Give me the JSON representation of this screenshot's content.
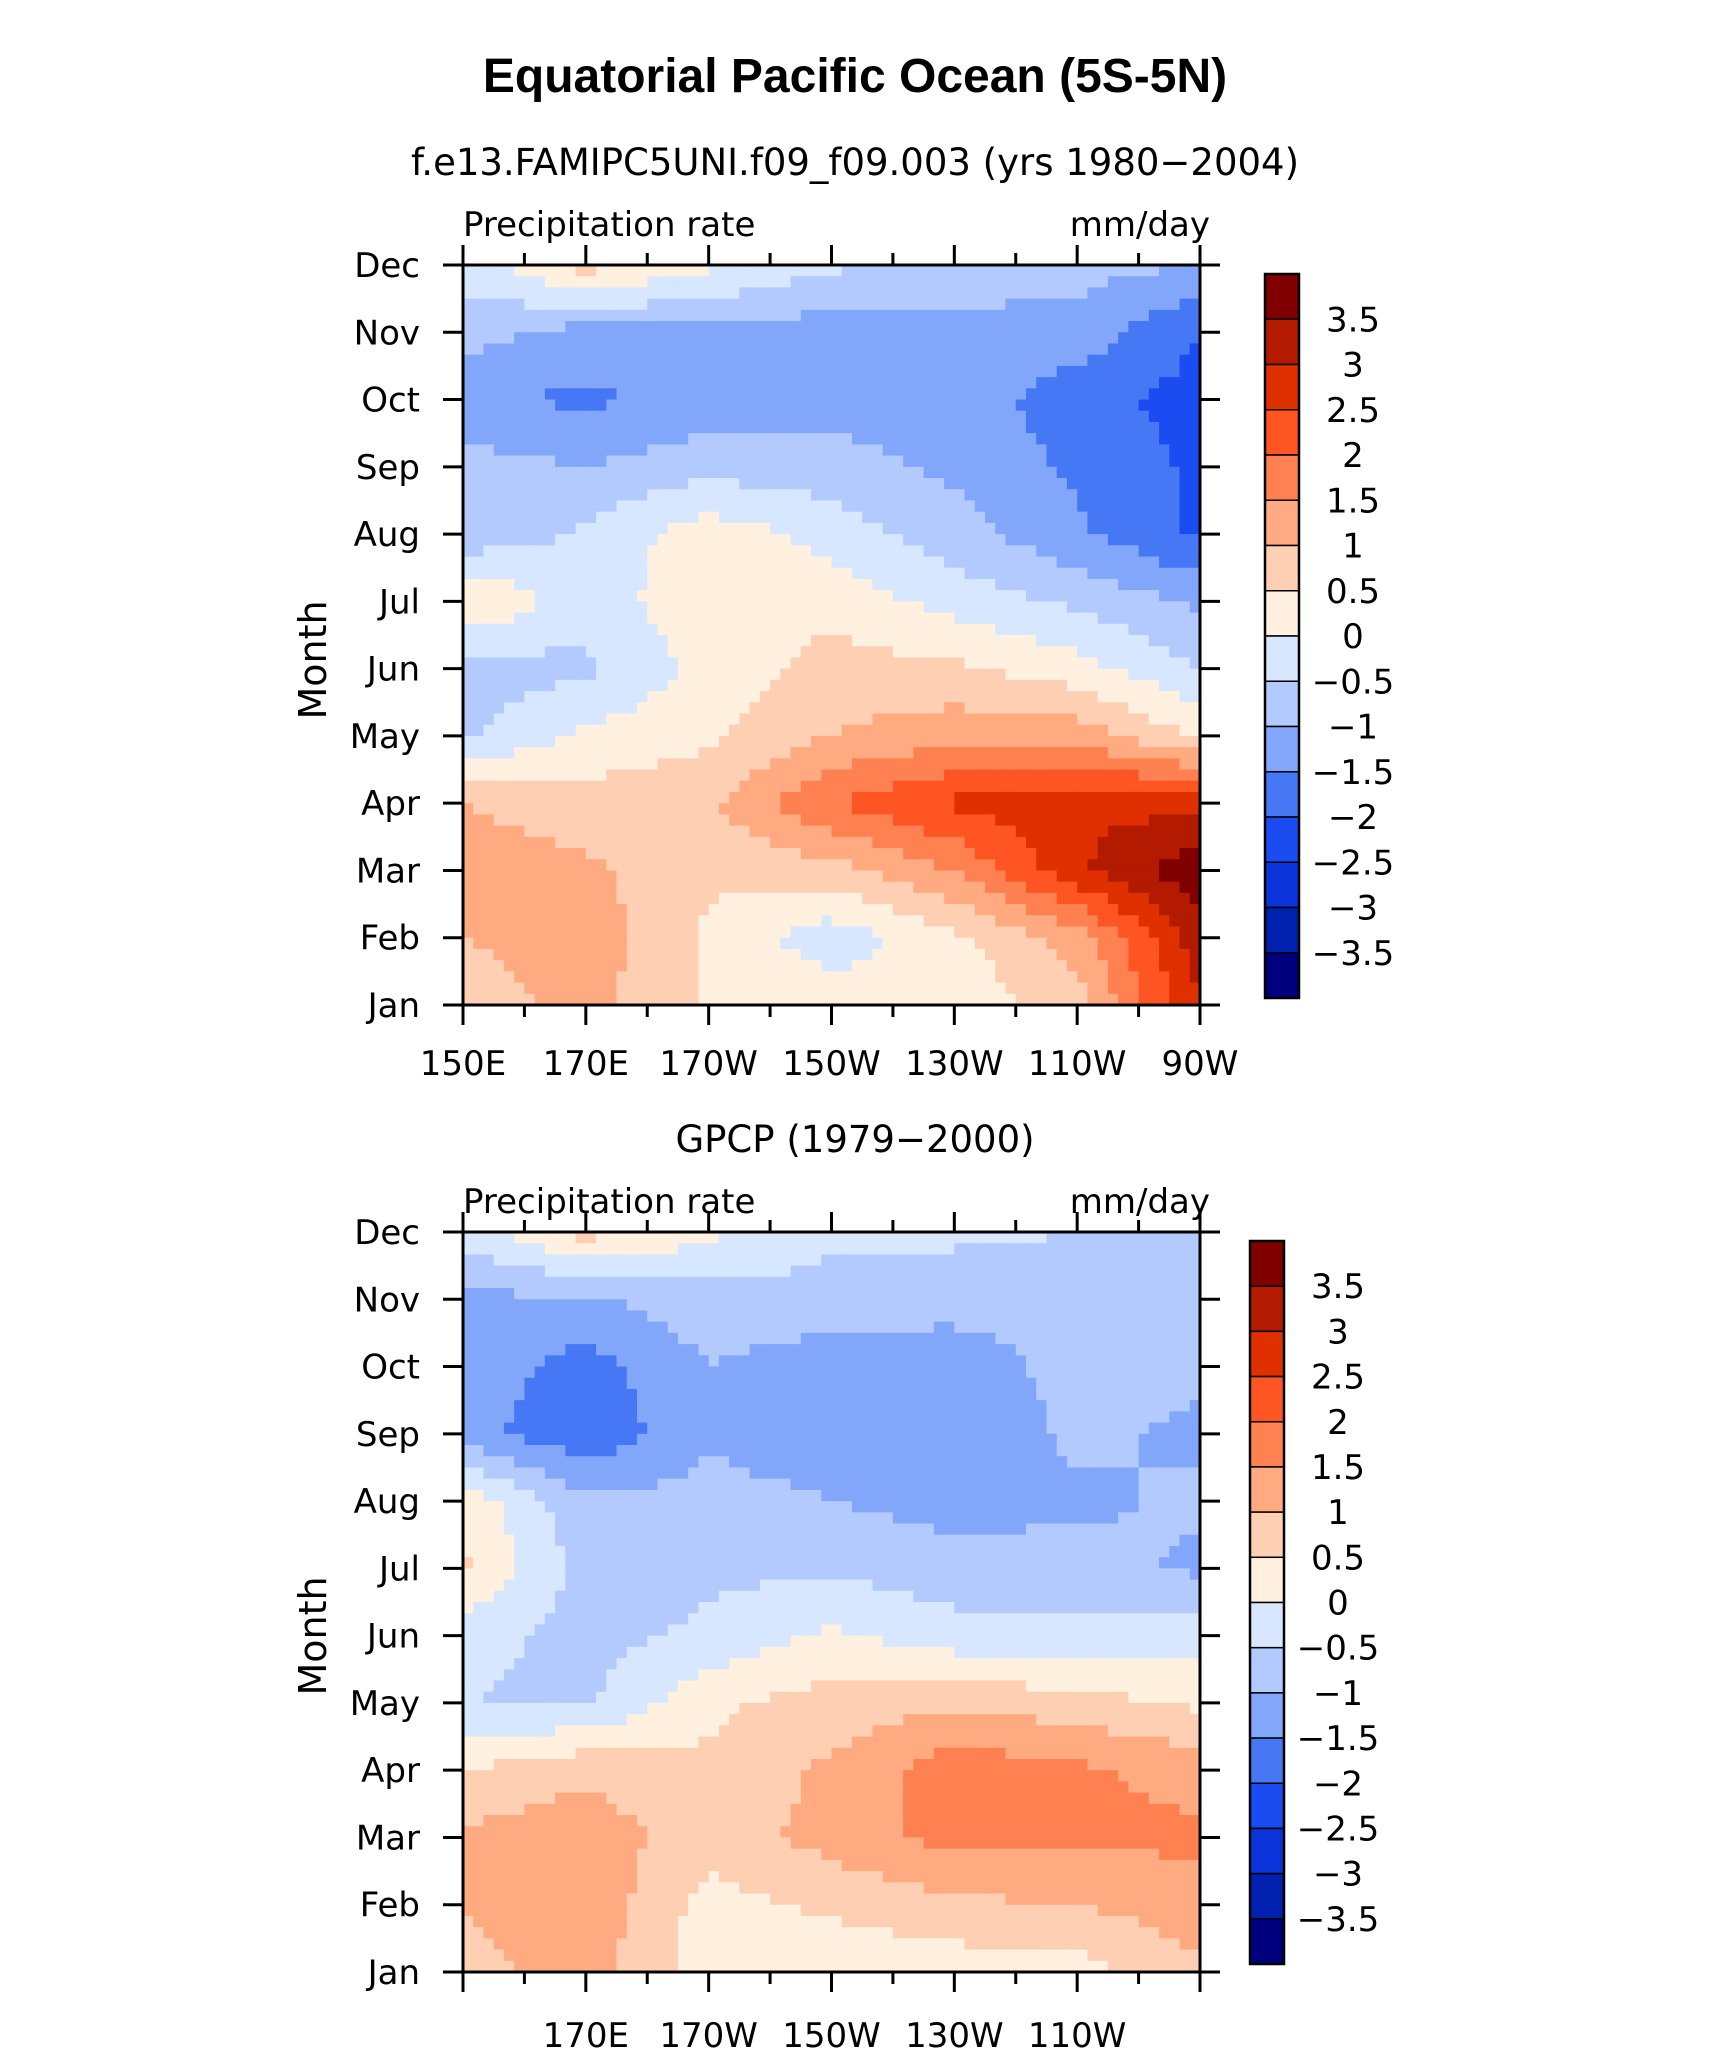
{
  "figure_title": "Equatorial Pacific Ocean (5S-5N)",
  "colors": {
    "levels": [
      "#00007f",
      "#0020b0",
      "#0a33d9",
      "#1a4cf2",
      "#4678f5",
      "#82a6fa",
      "#b3caff",
      "#d7e7ff",
      "#fff0e0",
      "#ffcfb3",
      "#ffaa80",
      "#ff8050",
      "#ff5522",
      "#e03000",
      "#b31a00",
      "#800000"
    ]
  },
  "chart_data": [
    {
      "type": "heatmap",
      "subtitle": "f.e13.FAMIPC5UNI.f09_f09.003 (yrs 1980−2004)",
      "left_label": "Precipitation rate",
      "right_label": "mm/day",
      "ylabel": "Month",
      "y_ticks": [
        "Jan",
        "Feb",
        "Mar",
        "Apr",
        "May",
        "Jun",
        "Jul",
        "Aug",
        "Sep",
        "Oct",
        "Nov",
        "Dec"
      ],
      "x_ticks": [
        "150E",
        "170E",
        "170W",
        "150W",
        "130W",
        "110W",
        "90W"
      ],
      "x_range": [
        150,
        270
      ],
      "colorbar_levels": [
        "3.5",
        "3",
        "2.5",
        "2",
        "1.5",
        "1",
        "0.5",
        "0",
        "−0.5",
        "−1",
        "−1.5",
        "−2",
        "−2.5",
        "−3",
        "−3.5"
      ],
      "grid": {
        "lon": [
          150,
          170,
          190,
          210,
          230,
          250,
          270
        ],
        "months": [
          "Jan",
          "Feb",
          "Mar",
          "Apr",
          "May",
          "Jun",
          "Jul",
          "Aug",
          "Sep",
          "Oct",
          "Nov",
          "Dec"
        ],
        "values": [
          [
            0.7,
            1.2,
            0.4,
            0.3,
            0.1,
            0.8,
            3.0
          ],
          [
            1.0,
            1.3,
            0.4,
            -0.3,
            0.4,
            1.2,
            3.3
          ],
          [
            1.3,
            1.1,
            0.6,
            0.8,
            1.5,
            2.9,
            3.9
          ],
          [
            1.0,
            0.7,
            0.9,
            2.0,
            2.6,
            2.9,
            2.8
          ],
          [
            -0.6,
            0.1,
            0.4,
            1.0,
            1.3,
            1.3,
            0.4
          ],
          [
            -0.8,
            -0.6,
            0.2,
            0.7,
            0.6,
            0.2,
            -0.5
          ],
          [
            0.6,
            -0.3,
            0.4,
            0.3,
            -0.2,
            -0.6,
            -1.1
          ],
          [
            -0.9,
            -0.4,
            0.3,
            -0.2,
            -0.8,
            -1.4,
            -2.1
          ],
          [
            -0.8,
            -1.0,
            -0.7,
            -0.8,
            -1.1,
            -1.6,
            -2.1
          ],
          [
            -1.4,
            -1.6,
            -1.3,
            -1.2,
            -1.2,
            -1.8,
            -2.2
          ],
          [
            -0.8,
            -1.2,
            -1.1,
            -1.3,
            -1.1,
            -1.2,
            -2.0
          ],
          [
            -0.3,
            0.7,
            0.1,
            -0.4,
            -0.8,
            -0.8,
            -1.0
          ]
        ]
      }
    },
    {
      "type": "heatmap",
      "subtitle": "GPCP (1979−2000)",
      "left_label": "Precipitation rate",
      "right_label": "mm/day",
      "ylabel": "Month",
      "y_ticks": [
        "Jan",
        "Feb",
        "Mar",
        "Apr",
        "May",
        "Jun",
        "Jul",
        "Aug",
        "Sep",
        "Oct",
        "Nov",
        "Dec"
      ],
      "x_ticks": [
        "170E",
        "170W",
        "150W",
        "130W",
        "110W"
      ],
      "x_range": [
        150,
        270
      ],
      "colorbar_levels": [
        "3.5",
        "3",
        "2.5",
        "2",
        "1.5",
        "1",
        "0.5",
        "0",
        "−0.5",
        "−1",
        "−1.5",
        "−2",
        "−2.5",
        "−3",
        "−3.5"
      ],
      "grid": {
        "lon": [
          150,
          170,
          190,
          210,
          230,
          250,
          270
        ],
        "months": [
          "Jan",
          "Feb",
          "Mar",
          "Apr",
          "May",
          "Jun",
          "Jul",
          "Aug",
          "Sep",
          "Oct",
          "Nov",
          "Dec"
        ],
        "values": [
          [
            0.8,
            1.2,
            0.2,
            0.1,
            0.2,
            0.3,
            0.9
          ],
          [
            1.0,
            1.4,
            0.3,
            0.6,
            0.9,
            1.0,
            1.3
          ],
          [
            1.1,
            1.3,
            0.7,
            1.2,
            1.7,
            1.6,
            1.6
          ],
          [
            0.5,
            0.9,
            0.6,
            1.1,
            1.8,
            1.6,
            1.3
          ],
          [
            -0.5,
            -0.6,
            0.4,
            0.7,
            0.9,
            0.7,
            0.4
          ],
          [
            -0.3,
            -0.7,
            -0.4,
            0.1,
            -0.3,
            -0.4,
            -0.2
          ],
          [
            0.6,
            -0.7,
            -0.6,
            -0.6,
            -0.8,
            -0.8,
            -1.1
          ],
          [
            0.4,
            -0.9,
            -0.8,
            -1.0,
            -1.2,
            -1.1,
            -0.9
          ],
          [
            -1.3,
            -1.9,
            -1.1,
            -1.3,
            -1.4,
            -0.9,
            -1.1
          ],
          [
            -1.2,
            -1.7,
            -1.0,
            -1.3,
            -1.3,
            -0.8,
            -0.9
          ],
          [
            -1.1,
            -1.1,
            -0.7,
            -0.7,
            -0.8,
            -0.8,
            -0.6
          ],
          [
            -0.3,
            0.7,
            0.1,
            -0.4,
            -0.4,
            -0.5,
            -0.6
          ]
        ]
      }
    }
  ]
}
